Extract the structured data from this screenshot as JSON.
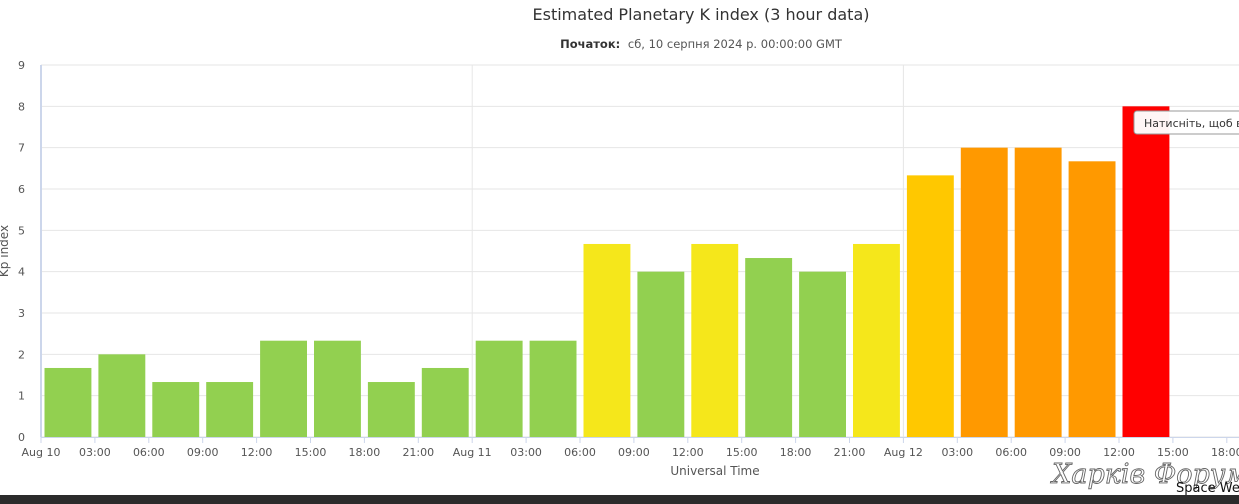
{
  "chart_data": {
    "type": "bar",
    "title": "Estimated Planetary K index (3 hour data)",
    "subtitle_label": "Початок:",
    "subtitle_value": "сб, 10 серпня 2024 р. 00:00:00 GMT",
    "xlabel": "Universal Time",
    "ylabel": "Kp index",
    "ylim": [
      0,
      9
    ],
    "yticks": [
      0,
      1,
      2,
      3,
      4,
      5,
      6,
      7,
      8,
      9
    ],
    "grid": true,
    "legend": "none",
    "x_tick_labels": [
      "Aug 10",
      "03:00",
      "06:00",
      "09:00",
      "12:00",
      "15:00",
      "18:00",
      "21:00",
      "Aug 11",
      "03:00",
      "06:00",
      "09:00",
      "12:00",
      "15:00",
      "18:00",
      "21:00",
      "Aug 12",
      "03:00",
      "06:00",
      "09:00",
      "12:00",
      "15:00",
      "18:00"
    ],
    "x": [
      "Aug 10 00:00",
      "Aug 10 03:00",
      "Aug 10 06:00",
      "Aug 10 09:00",
      "Aug 10 12:00",
      "Aug 10 15:00",
      "Aug 10 18:00",
      "Aug 10 21:00",
      "Aug 11 00:00",
      "Aug 11 03:00",
      "Aug 11 06:00",
      "Aug 11 09:00",
      "Aug 11 12:00",
      "Aug 11 15:00",
      "Aug 11 18:00",
      "Aug 11 21:00",
      "Aug 12 00:00",
      "Aug 12 03:00",
      "Aug 12 06:00",
      "Aug 12 09:00",
      "Aug 12 12:00"
    ],
    "values": [
      1.67,
      2.0,
      1.33,
      1.33,
      2.33,
      2.33,
      1.33,
      1.67,
      2.33,
      2.33,
      4.67,
      4.0,
      4.67,
      4.33,
      4.0,
      4.67,
      6.33,
      7.0,
      7.0,
      6.67,
      8.0
    ],
    "colors": {
      "green": "#92d050",
      "yellow": "#f5e71b",
      "amber": "#ffc800",
      "orange": "#ff9900",
      "red": "#ff0000",
      "grid": "#e6e6e6",
      "axis": "#ccd6eb"
    }
  },
  "tooltip": {
    "text": "Натисніть, щоб ви"
  },
  "watermark": {
    "text": "Харків Форум"
  },
  "corner_text": "Space We"
}
